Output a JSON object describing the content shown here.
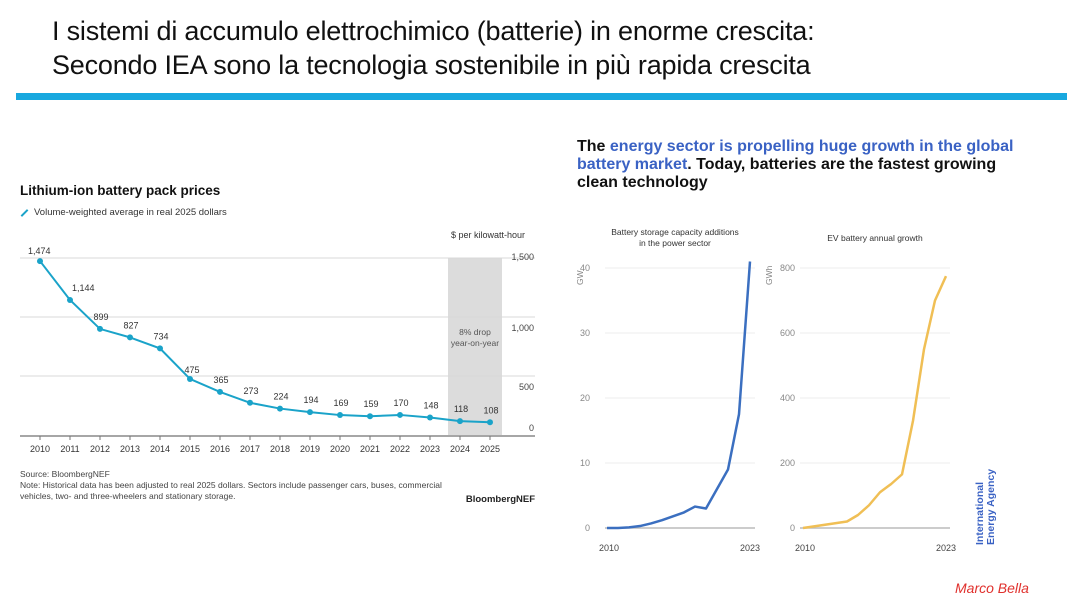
{
  "slide": {
    "title_line1": "I sistemi di accumulo elettrochimico (batterie) in enorme crescita:",
    "title_line2": "Secondo IEA sono la tecnologia sostenibile in più rapida crescita",
    "accent_color": "#18a8df",
    "author": "Marco Bella"
  },
  "left_panel": {
    "source": "Source: BloombergNEF",
    "note": "Note: Historical data has been adjusted to real 2025 dollars. Sectors include passenger cars, buses, commercial vehicles, two- and three-wheelers and stationary storage.",
    "brand": "BloombergNEF",
    "legend_icon": "line-swatch-icon"
  },
  "right_panel": {
    "headline_pre": "The ",
    "headline_highlight": "energy sector is propelling huge growth in the global battery market",
    "headline_post": ". Today, batteries are the fastest growing clean technology",
    "logo_line1": "International",
    "logo_line2": "Energy Agency",
    "highlight_color": "#3a62c4"
  },
  "chart_data": [
    {
      "type": "line",
      "title": "Lithium-ion battery pack prices",
      "legend": [
        "Volume-weighted average in real 2025 dollars"
      ],
      "ylabel": "$ per kilowatt-hour",
      "xlabel": "",
      "categories": [
        "2010",
        "2011",
        "2012",
        "2013",
        "2014",
        "2015",
        "2016",
        "2017",
        "2018",
        "2019",
        "2020",
        "2021",
        "2022",
        "2023",
        "2024",
        "2025"
      ],
      "values": [
        1474,
        1144,
        899,
        827,
        734,
        475,
        365,
        273,
        224,
        194,
        169,
        159,
        170,
        148,
        118,
        108
      ],
      "data_labels": [
        "1,474",
        "1,144",
        "899",
        "827",
        "734",
        "475",
        "365",
        "273",
        "224",
        "194",
        "169",
        "159",
        "170",
        "148",
        "118",
        "108"
      ],
      "ylim": [
        0,
        1500
      ],
      "yticks": [
        0,
        500,
        1000,
        1500
      ],
      "ytick_labels": [
        "0",
        "500",
        "1,000",
        "1,500"
      ],
      "y_axis_side": "right",
      "grid": true,
      "color": "#1aa3c9",
      "annotation": {
        "text_line1": "8% drop",
        "text_line2": "year-on-year",
        "span": [
          "2024",
          "2025"
        ]
      }
    },
    {
      "type": "line",
      "title": "Battery storage capacity additions in the power sector",
      "title_line1": "Battery storage capacity additions",
      "title_line2": "in the power sector",
      "ylabel": "GW",
      "x": [
        2010,
        2011,
        2012,
        2013,
        2014,
        2015,
        2016,
        2017,
        2018,
        2019,
        2020,
        2021,
        2022,
        2023
      ],
      "values": [
        0,
        0,
        0.1,
        0.3,
        0.7,
        1.2,
        1.8,
        2.4,
        3.3,
        3.0,
        6.0,
        9.0,
        17.5,
        41
      ],
      "xtick_labels": [
        "2010",
        "2023"
      ],
      "ylim": [
        0,
        40
      ],
      "yticks": [
        0,
        10,
        20,
        30,
        40
      ],
      "grid": true,
      "color": "#3b6fc0"
    },
    {
      "type": "line",
      "title": "EV battery annual growth",
      "ylabel": "GWh",
      "x": [
        2010,
        2011,
        2012,
        2013,
        2014,
        2015,
        2016,
        2017,
        2018,
        2019,
        2020,
        2021,
        2022,
        2023
      ],
      "values": [
        0,
        5,
        10,
        15,
        20,
        40,
        70,
        110,
        135,
        165,
        330,
        550,
        700,
        775
      ],
      "xtick_labels": [
        "2010",
        "2023"
      ],
      "ylim": [
        0,
        800
      ],
      "yticks": [
        0,
        200,
        400,
        600,
        800
      ],
      "grid": true,
      "color": "#f0bf55"
    }
  ]
}
